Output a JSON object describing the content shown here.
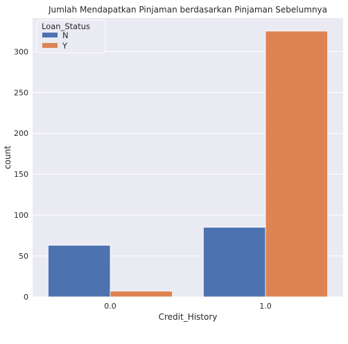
{
  "chart_data": {
    "type": "bar",
    "title": "Jumlah Mendapatkan Pinjaman berdasarkan Pinjaman Sebelumnya",
    "xlabel": "Credit_History",
    "ylabel": "count",
    "categories": [
      "0.0",
      "1.0"
    ],
    "series": [
      {
        "name": "N",
        "values": [
          63,
          85
        ],
        "color": "#4c72b0"
      },
      {
        "name": "Y",
        "values": [
          7,
          325
        ],
        "color": "#dd8452"
      }
    ],
    "ylim": [
      0,
      341
    ],
    "yticks": [
      "0",
      "50",
      "100",
      "150",
      "200",
      "250",
      "300"
    ],
    "legend": {
      "title": "Loan_Status",
      "position": "top-left"
    },
    "grid": true,
    "style": {
      "plot_background": "#eaeaf2",
      "grid_color": "#ffffff"
    }
  }
}
